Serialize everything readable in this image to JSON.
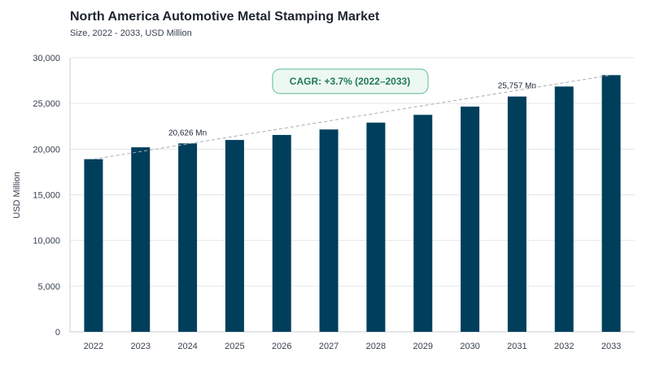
{
  "header": {
    "title": "North America Automotive Metal Stamping Market",
    "subtitle": "Size, 2022 - 2033, USD Million"
  },
  "chart_data": {
    "type": "bar",
    "title": "North America Automotive Metal Stamping Market",
    "subtitle": "Size, 2022 - 2033, USD Million",
    "xlabel": "",
    "ylabel": "USD Million",
    "categories": [
      "2022",
      "2023",
      "2024",
      "2025",
      "2026",
      "2027",
      "2028",
      "2029",
      "2030",
      "2031",
      "2032",
      "2033"
    ],
    "values": [
      18900,
      20200,
      20626,
      21000,
      21550,
      22150,
      22900,
      23750,
      24650,
      25757,
      26850,
      28100
    ],
    "ylim": [
      0,
      30000
    ],
    "yticks": [
      0,
      5000,
      10000,
      15000,
      20000,
      25000,
      30000
    ],
    "ytick_labels": [
      "0",
      "5,000",
      "10,000",
      "15,000",
      "20,000",
      "25,000",
      "30,000"
    ],
    "grid": true,
    "bar_color": "#003f5c",
    "annotations": [
      {
        "category": "2024",
        "text": "20,626 Mn"
      },
      {
        "category": "2031",
        "text": "25,757 Mn"
      }
    ],
    "cagr_label": "CAGR: +3.7% (2022–2033)",
    "trendline": true
  }
}
